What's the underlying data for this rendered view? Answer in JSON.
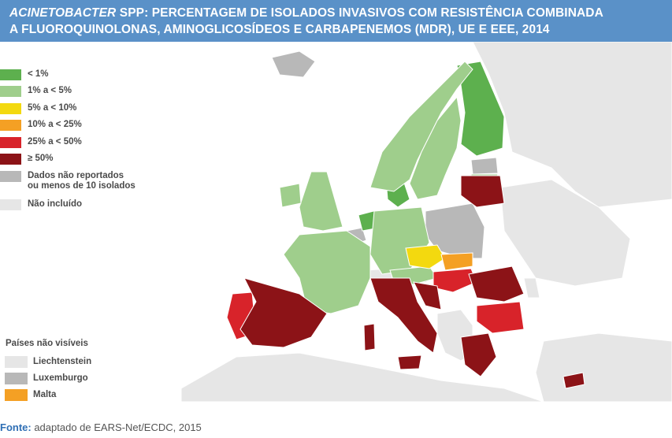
{
  "title": {
    "italic_part": "ACINETOBACTER",
    "line1_rest": " SPP: PERCENTAGEM DE ISOLADOS INVASIVOS COM RESISTÊNCIA COMBINADA",
    "line2": "A FLUOROQUINOLONAS, AMINOGLICOSÍDEOS E CARBAPENEMOS (MDR), UE E EEE, 2014"
  },
  "legend": [
    {
      "label": "< 1%",
      "color": "#5db04e"
    },
    {
      "label": "1% a < 5%",
      "color": "#9fce8c"
    },
    {
      "label": "5% a < 10%",
      "color": "#f3d90f"
    },
    {
      "label": "10% a < 25%",
      "color": "#f4a024"
    },
    {
      "label": "25% a < 50%",
      "color": "#d8232a"
    },
    {
      "label": "≥ 50%",
      "color": "#8c1317"
    },
    {
      "label": "Dados não reportados\nou menos de 10 isolados",
      "color": "#b8b8b8"
    },
    {
      "label": "Não incluído",
      "color": "#e6e6e6"
    }
  ],
  "not_visible": {
    "title": "Países não visíveis",
    "items": [
      {
        "label": "Liechtenstein",
        "color": "#e6e6e6"
      },
      {
        "label": "Luxemburgo",
        "color": "#b8b8b8"
      },
      {
        "label": "Malta",
        "color": "#f4a024"
      }
    ]
  },
  "source": {
    "label": "Fonte:",
    "text": " adaptado de EARS-Net/ECDC, 2015"
  }
}
